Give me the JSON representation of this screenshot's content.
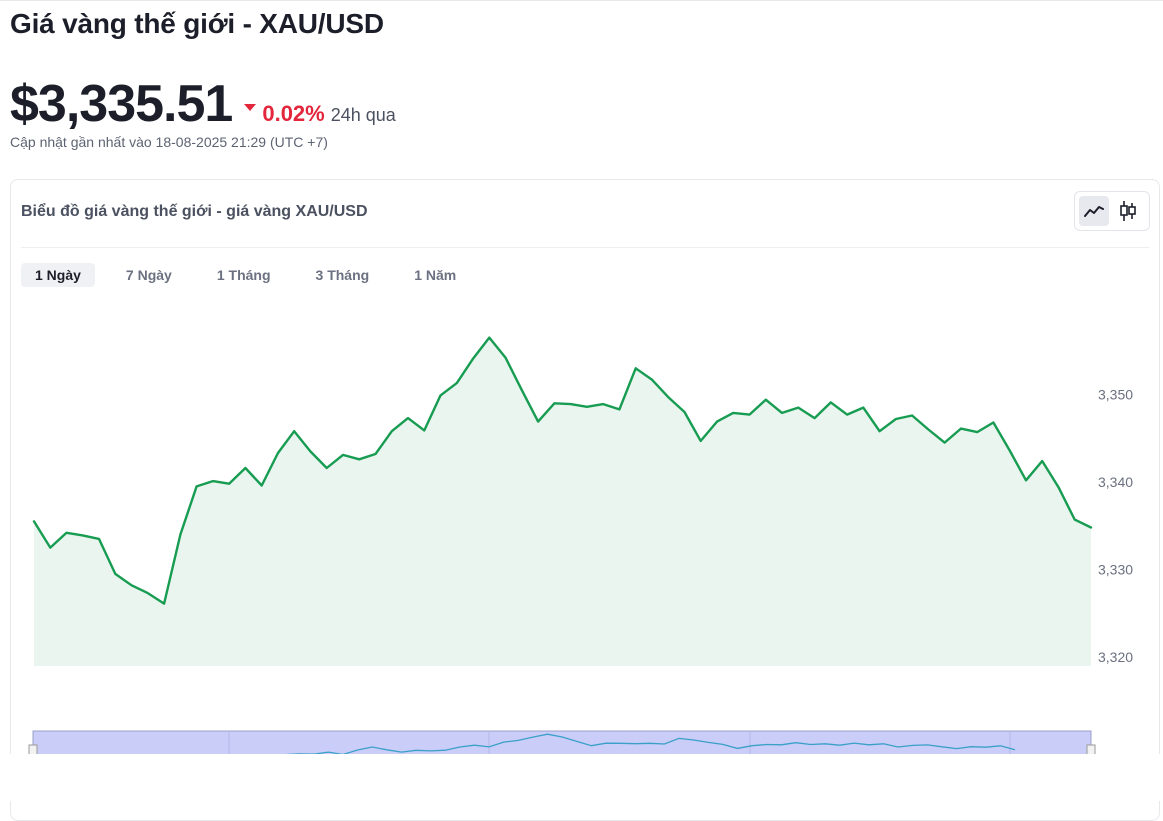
{
  "page": {
    "title": "Giá vàng thế giới - XAU/USD",
    "price": "$3,335.51",
    "change": "0.02%",
    "change_direction": "down",
    "change_period": "24h qua",
    "updated": "Cập nhật gần nhất vào 18-08-2025 21:29 (UTC +7)"
  },
  "chart_card": {
    "title": "Biểu đồ giá vàng thế giới - giá vàng XAU/USD",
    "view_toggle": [
      {
        "icon": "line-chart-icon",
        "active": true
      },
      {
        "icon": "candlestick-icon",
        "active": false
      }
    ],
    "tabs": [
      {
        "label": "1 Ngày",
        "active": true
      },
      {
        "label": "7 Ngày",
        "active": false
      },
      {
        "label": "1 Tháng",
        "active": false
      },
      {
        "label": "3 Tháng",
        "active": false
      },
      {
        "label": "1 Năm",
        "active": false
      }
    ]
  },
  "colors": {
    "line": "#179c52",
    "area": "#e9f5ee",
    "down": "#e3263b",
    "navigator_fill": "#c9cdf7",
    "navigator_line": "#3aa0c8"
  },
  "chart_data": {
    "type": "area",
    "values": [
      3335.5,
      3332.5,
      3334.2,
      3333.9,
      3333.5,
      3329.5,
      3328.2,
      3327.3,
      3326.1,
      3334.0,
      3339.5,
      3340.1,
      3339.8,
      3341.6,
      3339.6,
      3343.3,
      3345.8,
      3343.5,
      3341.6,
      3343.1,
      3342.6,
      3343.2,
      3345.8,
      3347.3,
      3345.9,
      3349.9,
      3351.3,
      3354.1,
      3356.5,
      3354.2,
      3350.5,
      3346.9,
      3349.0,
      3348.9,
      3348.6,
      3348.9,
      3348.3,
      3353.0,
      3351.7,
      3349.7,
      3348.0,
      3344.7,
      3346.9,
      3347.9,
      3347.7,
      3349.4,
      3347.9,
      3348.5,
      3347.3,
      3349.1,
      3347.7,
      3348.5,
      3345.8,
      3347.2,
      3347.6,
      3346.0,
      3344.5,
      3346.1,
      3345.7,
      3346.8,
      3343.6,
      3340.2,
      3342.4,
      3339.4,
      3335.7,
      3334.8
    ],
    "ylim": [
      3320,
      3357
    ],
    "yticks": [
      "3,350",
      "3,340",
      "3,330",
      "3,320"
    ],
    "ytick_values": [
      3350,
      3340,
      3330,
      3320
    ],
    "grid": false,
    "legend": "none"
  }
}
